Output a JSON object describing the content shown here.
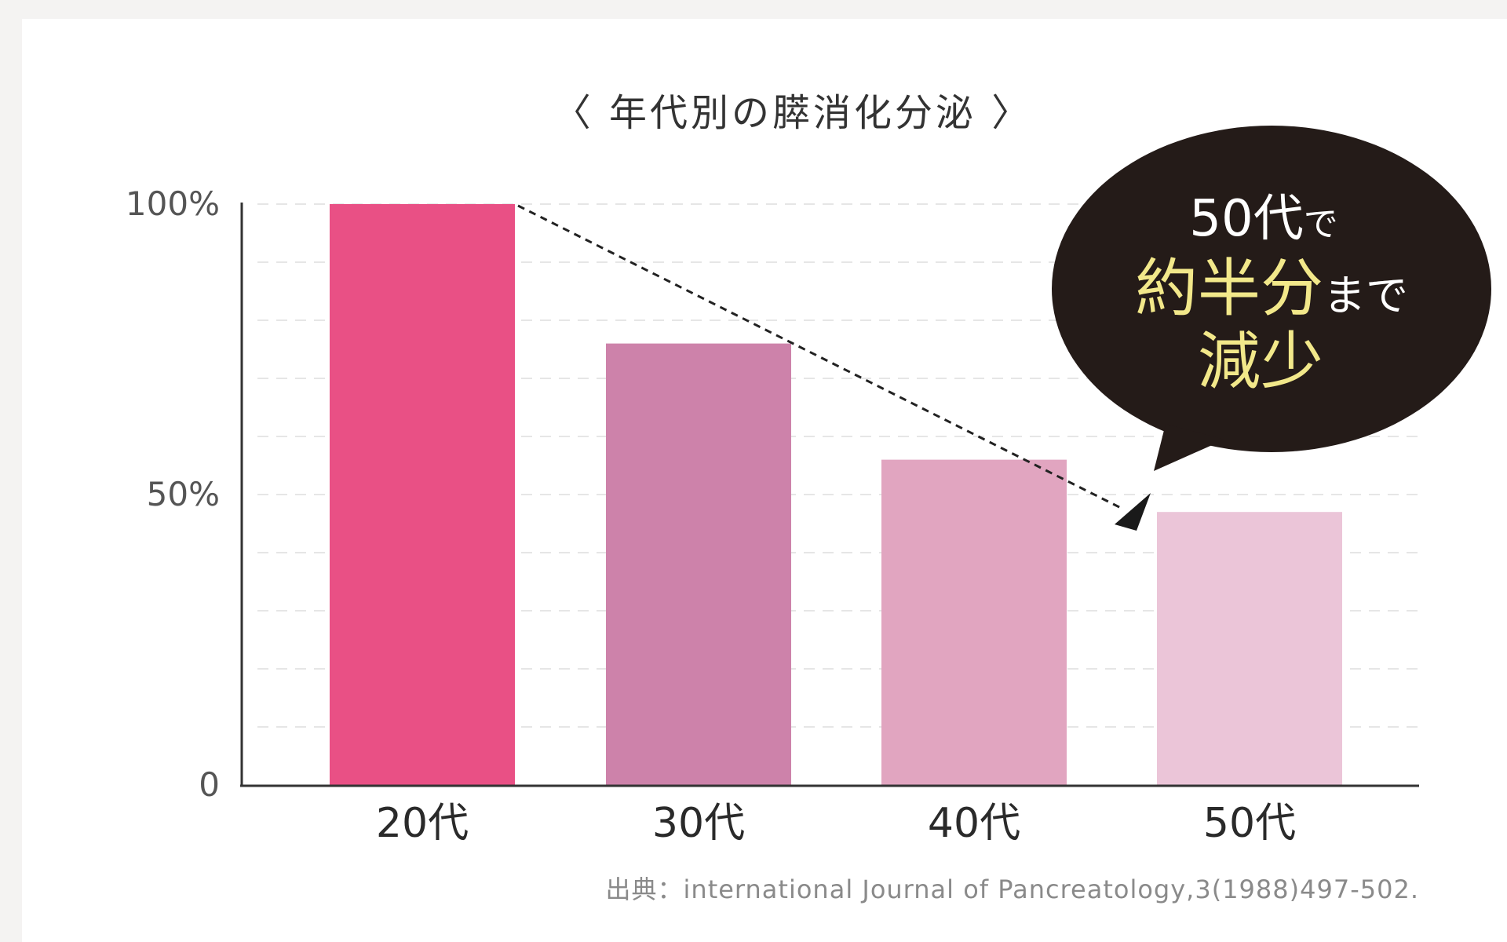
{
  "chart_data": {
    "type": "bar",
    "title": "〈 年代別の膵消化分泌 〉",
    "categories": [
      "20代",
      "30代",
      "40代",
      "50代"
    ],
    "values": [
      100,
      76,
      56,
      47
    ],
    "ylim": [
      0,
      100
    ],
    "yticks": [
      {
        "value": 100,
        "label": "100%"
      },
      {
        "value": 50,
        "label": "50%"
      },
      {
        "value": 0,
        "label": "0"
      }
    ],
    "grid": true,
    "colors": [
      "#e95085",
      "#cd82aa",
      "#e1a5c0",
      "#ebc5d8"
    ],
    "source": "出典：international Journal of Pancreatology,3(1988)497-502.",
    "annotation": {
      "line1_em": "50代",
      "line1_small": "で",
      "line2_em": "約半分",
      "line2_small": "まで",
      "line3_em": "減少",
      "bubble_color": "#241b18",
      "highlight_color": "#f2e88a"
    }
  }
}
